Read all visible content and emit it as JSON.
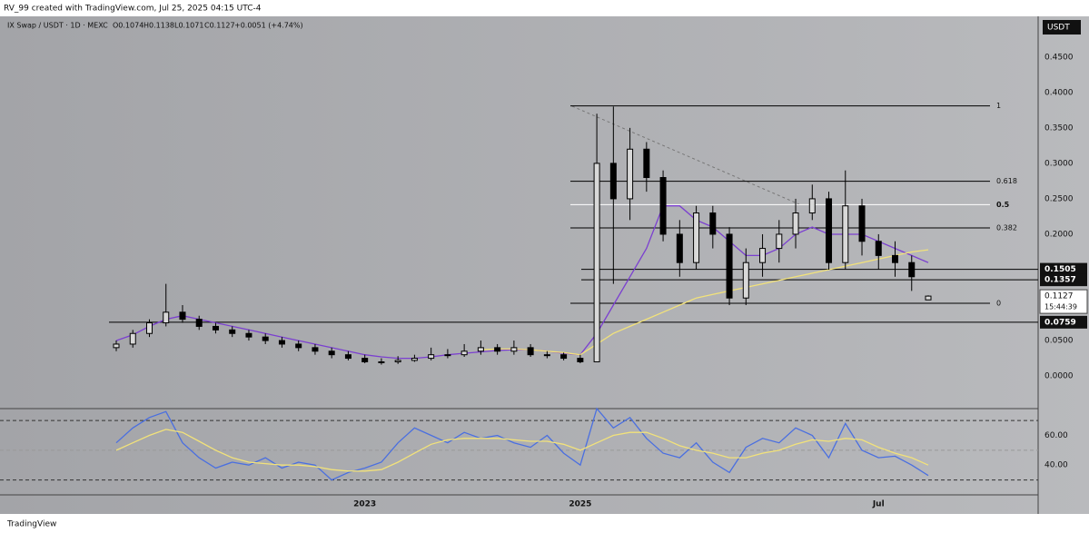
{
  "header": {
    "credit": "RV_99 created with TradingView.com, Jul 25, 2025 04:15 UTC-4",
    "footer": "TradingView"
  },
  "chart_data": {
    "type": "candlestick",
    "symbol": "IX Swap / USDT · 1D · MEXC",
    "ohlc_text": [
      "O0.1074",
      "H0.1138",
      "L0.1071",
      "C0.1127",
      "+0.0051 (+4.74%)"
    ],
    "currency": "USDT",
    "categories": [
      null,
      null,
      null,
      null,
      null,
      null,
      null,
      null,
      null,
      null,
      null,
      null,
      null,
      null,
      null,
      "2023",
      null,
      null,
      null,
      null,
      null,
      null,
      null,
      null,
      null,
      null,
      null,
      null,
      "2025",
      null,
      null,
      null,
      null,
      null,
      null,
      null,
      null,
      null,
      null,
      null,
      null,
      null,
      null,
      null,
      null,
      null,
      "Jul",
      null,
      null,
      null
    ],
    "candles": {
      "open": [
        0.04,
        0.045,
        0.06,
        0.075,
        0.09,
        0.08,
        0.07,
        0.065,
        0.06,
        0.055,
        0.05,
        0.045,
        0.04,
        0.035,
        0.03,
        0.025,
        0.02,
        0.02,
        0.022,
        0.025,
        0.03,
        0.03,
        0.035,
        0.04,
        0.035,
        0.04,
        0.03,
        0.03,
        0.025,
        0.02,
        0.3,
        0.25,
        0.32,
        0.28,
        0.2,
        0.16,
        0.23,
        0.2,
        0.11,
        0.16,
        0.18,
        0.2,
        0.23,
        0.25,
        0.16,
        0.24,
        0.19,
        0.17,
        0.16,
        0.1074
      ],
      "high": [
        0.05,
        0.065,
        0.08,
        0.13,
        0.1,
        0.085,
        0.075,
        0.07,
        0.065,
        0.06,
        0.055,
        0.05,
        0.045,
        0.04,
        0.035,
        0.03,
        0.025,
        0.028,
        0.03,
        0.04,
        0.038,
        0.045,
        0.05,
        0.045,
        0.05,
        0.045,
        0.035,
        0.033,
        0.03,
        0.37,
        0.38,
        0.35,
        0.33,
        0.29,
        0.22,
        0.24,
        0.24,
        0.21,
        0.18,
        0.2,
        0.22,
        0.25,
        0.27,
        0.26,
        0.29,
        0.25,
        0.2,
        0.19,
        0.17,
        0.1138
      ],
      "low": [
        0.035,
        0.04,
        0.055,
        0.07,
        0.075,
        0.065,
        0.06,
        0.055,
        0.05,
        0.045,
        0.04,
        0.035,
        0.03,
        0.025,
        0.022,
        0.018,
        0.016,
        0.017,
        0.02,
        0.022,
        0.025,
        0.027,
        0.03,
        0.03,
        0.03,
        0.027,
        0.025,
        0.022,
        0.018,
        0.02,
        0.13,
        0.22,
        0.26,
        0.19,
        0.14,
        0.15,
        0.18,
        0.1,
        0.1,
        0.14,
        0.16,
        0.18,
        0.22,
        0.15,
        0.15,
        0.17,
        0.15,
        0.14,
        0.12,
        0.1071
      ],
      "close": [
        0.045,
        0.06,
        0.075,
        0.09,
        0.08,
        0.07,
        0.065,
        0.06,
        0.055,
        0.05,
        0.045,
        0.04,
        0.035,
        0.03,
        0.025,
        0.02,
        0.02,
        0.022,
        0.025,
        0.03,
        0.03,
        0.035,
        0.04,
        0.035,
        0.04,
        0.03,
        0.03,
        0.025,
        0.02,
        0.3,
        0.25,
        0.32,
        0.28,
        0.2,
        0.16,
        0.23,
        0.2,
        0.11,
        0.16,
        0.18,
        0.2,
        0.23,
        0.25,
        0.16,
        0.24,
        0.19,
        0.17,
        0.16,
        0.14,
        0.1127
      ],
      "color": "#000000"
    },
    "series": [
      {
        "color": "#7b3fd0",
        "values": [
          0.05,
          0.058,
          0.07,
          0.08,
          0.085,
          0.08,
          0.075,
          0.07,
          0.065,
          0.06,
          0.055,
          0.05,
          0.045,
          0.04,
          0.035,
          0.03,
          0.027,
          0.025,
          0.025,
          0.027,
          0.03,
          0.032,
          0.034,
          0.036,
          0.037,
          0.037,
          0.035,
          0.032,
          0.03,
          0.06,
          0.1,
          0.14,
          0.18,
          0.24,
          0.24,
          0.22,
          0.21,
          0.19,
          0.17,
          0.17,
          0.18,
          0.2,
          0.21,
          0.2,
          0.2,
          0.2,
          0.19,
          0.18,
          0.17,
          0.16
        ]
      },
      {
        "color": "#f2e27a",
        "values": [
          null,
          null,
          null,
          null,
          null,
          null,
          null,
          null,
          null,
          null,
          null,
          null,
          null,
          null,
          null,
          null,
          null,
          null,
          null,
          null,
          null,
          null,
          0.037,
          0.038,
          0.038,
          0.037,
          0.035,
          0.033,
          0.03,
          0.045,
          0.06,
          0.07,
          0.08,
          0.09,
          0.1,
          0.11,
          0.115,
          0.12,
          0.125,
          0.13,
          0.135,
          0.14,
          0.145,
          0.15,
          0.155,
          0.16,
          0.165,
          0.17,
          0.175,
          0.178
        ]
      }
    ],
    "ylim": [
      -0.046,
      0.492
    ],
    "yticks": [
      {
        "value": 0,
        "label": "0.0000"
      },
      {
        "value": 0.05,
        "label": "0.0500"
      },
      {
        "value": 0.2,
        "label": "0.2000"
      },
      {
        "value": 0.25,
        "label": "0.2500"
      },
      {
        "value": 0.3,
        "label": "0.3000"
      },
      {
        "value": 0.35,
        "label": "0.3500"
      },
      {
        "value": 0.4,
        "label": "0.4000"
      },
      {
        "value": 0.45,
        "label": "0.4500"
      }
    ],
    "price_lines": [
      {
        "value": 0.1505,
        "label": "0.1505"
      },
      {
        "value": 0.1357,
        "label": "0.1357"
      },
      {
        "value": 0.0759,
        "label": "0.0759"
      }
    ],
    "last_price": {
      "value": 0.1127,
      "label": "0.1127",
      "countdown": "15:44:39"
    },
    "fib": {
      "high": 0.381,
      "low": 0.1026,
      "levels": [
        1,
        0.618,
        0.5,
        0.382,
        0
      ],
      "colors": [
        "#000000",
        "#000000",
        "#ffffff",
        "#000000",
        "#000000"
      ]
    },
    "rsi": {
      "ylim": [
        20,
        78
      ],
      "yticks": [
        {
          "value": 40,
          "label": "40.00"
        },
        {
          "value": 60,
          "label": "60.00"
        }
      ],
      "levels": [
        70,
        50,
        30
      ],
      "series": [
        {
          "color": "#4a6fe0",
          "values": [
            55,
            65,
            72,
            76,
            55,
            45,
            38,
            42,
            40,
            45,
            38,
            42,
            40,
            30,
            35,
            38,
            42,
            55,
            65,
            60,
            55,
            62,
            58,
            60,
            55,
            52,
            60,
            48,
            40,
            78,
            65,
            72,
            58,
            48,
            45,
            55,
            42,
            35,
            52,
            58,
            55,
            65,
            60,
            45,
            68,
            50,
            45,
            46,
            40,
            33
          ]
        },
        {
          "color": "#f2e27a",
          "values": [
            50,
            55,
            60,
            64,
            62,
            56,
            50,
            45,
            42,
            41,
            40,
            40,
            39,
            37,
            36,
            36,
            37,
            42,
            48,
            54,
            57,
            58,
            58,
            58,
            57,
            56,
            56,
            54,
            50,
            55,
            60,
            62,
            62,
            58,
            53,
            50,
            48,
            45,
            45,
            48,
            50,
            54,
            57,
            56,
            58,
            57,
            52,
            48,
            45,
            40
          ]
        }
      ]
    }
  }
}
